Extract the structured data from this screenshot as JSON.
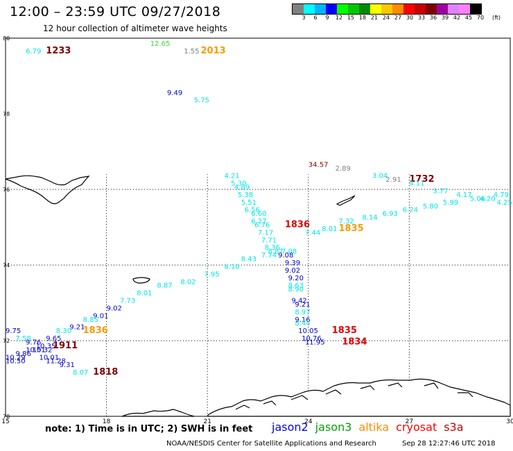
{
  "header": {
    "title": "12:00 – 23:59 UTC 09/27/2018",
    "subtitle": "12 hour collection of altimeter wave heights"
  },
  "colorbar": {
    "unit": "(ft)",
    "colors": [
      "#808080",
      "#00ffff",
      "#00b4ff",
      "#0000ff",
      "#00ff00",
      "#00c800",
      "#008c00",
      "#ffff00",
      "#ffc800",
      "#ff8c00",
      "#ff0000",
      "#c80000",
      "#7f0000",
      "#a000a0",
      "#e080ff",
      "#ff80ff",
      "#000000"
    ],
    "ticks": [
      "3",
      "6",
      "9",
      "12",
      "15",
      "18",
      "21",
      "24",
      "27",
      "30",
      "33",
      "36",
      "39",
      "42",
      "45",
      "70"
    ]
  },
  "footer": {
    "note": "note:  1) Time is in UTC;  2) SWH is in feet",
    "legend": [
      {
        "name": "jason2",
        "color": "#0000ff"
      },
      {
        "name": "jason3",
        "color": "#00a000"
      },
      {
        "name": "altika",
        "color": "#ff8c00"
      },
      {
        "name": "cryosat",
        "color": "#ff0000"
      },
      {
        "name": "s3a",
        "color": "#c80000"
      }
    ],
    "credit_left": "NOAA/NESDIS Center for Satellite Applications and Research",
    "credit_right": "Sep 28 12:27:46 UTC 2018"
  },
  "chart_data": {
    "type": "scatter",
    "title": "12:00 – 23:59 UTC 09/27/2018",
    "subtitle": "12 hour collection of altimeter wave heights",
    "xlim": [
      15,
      30
    ],
    "ylim": [
      70,
      80
    ],
    "x_ticks": [
      "15",
      "18",
      "21",
      "24",
      "27",
      "30"
    ],
    "y_ticks": [
      "70",
      "72",
      "74",
      "76",
      "78",
      "80"
    ],
    "color_scale": {
      "gray": "#808080",
      "cyan": "#00e5e5",
      "blue": "#0000cc",
      "green": "#33dd33",
      "orange": "#ff9900",
      "maroon": "#7f0000",
      "red": "#e00000"
    },
    "observations": [
      {
        "lon": 15.6,
        "lat": 79.6,
        "v": "6.79",
        "c": "cyan"
      },
      {
        "lon": 16.2,
        "lat": 79.6,
        "v": "1233",
        "c": "maroon",
        "time": true
      },
      {
        "lon": 19.3,
        "lat": 79.8,
        "v": "12.65",
        "c": "green"
      },
      {
        "lon": 20.3,
        "lat": 79.6,
        "v": "1.55",
        "c": "gray"
      },
      {
        "lon": 20.8,
        "lat": 79.6,
        "v": "2013",
        "c": "orange",
        "time": true
      },
      {
        "lon": 19.8,
        "lat": 78.5,
        "v": "9.49",
        "c": "blue"
      },
      {
        "lon": 20.6,
        "lat": 78.3,
        "v": "5.75",
        "c": "cyan"
      },
      {
        "lon": 24.0,
        "lat": 76.6,
        "v": "34.57",
        "c": "maroon"
      },
      {
        "lon": 24.8,
        "lat": 76.5,
        "v": "2.89",
        "c": "gray"
      },
      {
        "lon": 25.9,
        "lat": 76.3,
        "v": "3.04",
        "c": "cyan"
      },
      {
        "lon": 26.3,
        "lat": 76.2,
        "v": "2.91",
        "c": "gray"
      },
      {
        "lon": 27.0,
        "lat": 76.2,
        "v": "1732",
        "c": "maroon",
        "time": true
      },
      {
        "lon": 27.0,
        "lat": 76.1,
        "v": "4.11",
        "c": "cyan"
      },
      {
        "lon": 27.7,
        "lat": 75.9,
        "v": "3.77",
        "c": "cyan"
      },
      {
        "lon": 28.4,
        "lat": 75.8,
        "v": "4.17",
        "c": "cyan"
      },
      {
        "lon": 28.8,
        "lat": 75.7,
        "v": "5.06",
        "c": "cyan"
      },
      {
        "lon": 29.1,
        "lat": 75.7,
        "v": "4.20",
        "c": "cyan"
      },
      {
        "lon": 29.5,
        "lat": 75.8,
        "v": "4.79",
        "c": "cyan"
      },
      {
        "lon": 29.6,
        "lat": 75.6,
        "v": "4.25",
        "c": "cyan"
      },
      {
        "lon": 28.0,
        "lat": 75.6,
        "v": "5.99",
        "c": "cyan"
      },
      {
        "lon": 27.4,
        "lat": 75.5,
        "v": "5.80",
        "c": "cyan"
      },
      {
        "lon": 26.8,
        "lat": 75.4,
        "v": "6.24",
        "c": "cyan"
      },
      {
        "lon": 26.2,
        "lat": 75.3,
        "v": "6.93",
        "c": "cyan"
      },
      {
        "lon": 25.6,
        "lat": 75.2,
        "v": "8.14",
        "c": "cyan"
      },
      {
        "lon": 24.9,
        "lat": 75.1,
        "v": "7.32",
        "c": "cyan"
      },
      {
        "lon": 24.9,
        "lat": 74.9,
        "v": "1835",
        "c": "orange",
        "time": true
      },
      {
        "lon": 24.4,
        "lat": 74.9,
        "v": "8.01",
        "c": "cyan"
      },
      {
        "lon": 23.9,
        "lat": 74.8,
        "v": "7.44",
        "c": "cyan"
      },
      {
        "lon": 21.5,
        "lat": 76.3,
        "v": "4.21",
        "c": "cyan"
      },
      {
        "lon": 21.7,
        "lat": 76.1,
        "v": "5.30",
        "c": "cyan"
      },
      {
        "lon": 21.8,
        "lat": 76.0,
        "v": "4.89",
        "c": "cyan"
      },
      {
        "lon": 21.9,
        "lat": 75.8,
        "v": "5.38",
        "c": "cyan"
      },
      {
        "lon": 22.0,
        "lat": 75.6,
        "v": "5.51",
        "c": "cyan"
      },
      {
        "lon": 22.1,
        "lat": 75.4,
        "v": "6.56",
        "c": "cyan"
      },
      {
        "lon": 22.3,
        "lat": 75.3,
        "v": "6.60",
        "c": "cyan"
      },
      {
        "lon": 22.3,
        "lat": 75.1,
        "v": "6.27",
        "c": "cyan"
      },
      {
        "lon": 22.4,
        "lat": 75.0,
        "v": "6.76",
        "c": "cyan"
      },
      {
        "lon": 23.3,
        "lat": 75.0,
        "v": "1836",
        "c": "red",
        "time": true
      },
      {
        "lon": 22.5,
        "lat": 74.8,
        "v": "7.17",
        "c": "cyan"
      },
      {
        "lon": 22.6,
        "lat": 74.6,
        "v": "7.71",
        "c": "cyan"
      },
      {
        "lon": 22.7,
        "lat": 74.4,
        "v": "8.36",
        "c": "cyan"
      },
      {
        "lon": 22.8,
        "lat": 74.3,
        "v": "8.87",
        "c": "cyan"
      },
      {
        "lon": 23.2,
        "lat": 74.3,
        "v": "7.08",
        "c": "cyan"
      },
      {
        "lon": 22.6,
        "lat": 74.2,
        "v": "7.74",
        "c": "cyan"
      },
      {
        "lon": 23.1,
        "lat": 74.2,
        "v": "9.08",
        "c": "blue"
      },
      {
        "lon": 22.0,
        "lat": 74.1,
        "v": "8.43",
        "c": "cyan"
      },
      {
        "lon": 23.3,
        "lat": 74.0,
        "v": "9.39",
        "c": "blue"
      },
      {
        "lon": 21.5,
        "lat": 73.9,
        "v": "8.10",
        "c": "cyan"
      },
      {
        "lon": 23.3,
        "lat": 73.8,
        "v": "9.02",
        "c": "blue"
      },
      {
        "lon": 20.9,
        "lat": 73.7,
        "v": "7.95",
        "c": "cyan"
      },
      {
        "lon": 23.4,
        "lat": 73.6,
        "v": "9.20",
        "c": "blue"
      },
      {
        "lon": 20.2,
        "lat": 73.5,
        "v": "8.02",
        "c": "cyan"
      },
      {
        "lon": 23.4,
        "lat": 73.4,
        "v": "8.63",
        "c": "cyan"
      },
      {
        "lon": 19.5,
        "lat": 73.4,
        "v": "8.87",
        "c": "cyan"
      },
      {
        "lon": 23.4,
        "lat": 73.3,
        "v": "8.90",
        "c": "cyan"
      },
      {
        "lon": 18.9,
        "lat": 73.2,
        "v": "8.01",
        "c": "cyan"
      },
      {
        "lon": 23.5,
        "lat": 73.0,
        "v": "9.42",
        "c": "blue"
      },
      {
        "lon": 18.4,
        "lat": 73.0,
        "v": "7.73",
        "c": "cyan"
      },
      {
        "lon": 23.6,
        "lat": 72.9,
        "v": "9.21",
        "c": "blue"
      },
      {
        "lon": 18.0,
        "lat": 72.8,
        "v": "9.02",
        "c": "blue"
      },
      {
        "lon": 23.6,
        "lat": 72.7,
        "v": "8.97",
        "c": "cyan"
      },
      {
        "lon": 17.6,
        "lat": 72.6,
        "v": "9.01",
        "c": "blue"
      },
      {
        "lon": 23.6,
        "lat": 72.5,
        "v": "9.16",
        "c": "blue"
      },
      {
        "lon": 17.3,
        "lat": 72.5,
        "v": "8.85",
        "c": "cyan"
      },
      {
        "lon": 23.6,
        "lat": 72.4,
        "v": "8.44",
        "c": "cyan"
      },
      {
        "lon": 16.9,
        "lat": 72.3,
        "v": "9.21",
        "c": "blue"
      },
      {
        "lon": 16.5,
        "lat": 72.2,
        "v": "8.30",
        "c": "cyan"
      },
      {
        "lon": 17.3,
        "lat": 72.2,
        "v": "1836",
        "c": "orange",
        "time": true
      },
      {
        "lon": 23.7,
        "lat": 72.2,
        "v": "10.05",
        "c": "blue"
      },
      {
        "lon": 24.7,
        "lat": 72.2,
        "v": "1835",
        "c": "red",
        "time": true
      },
      {
        "lon": 23.8,
        "lat": 72.0,
        "v": "10.76",
        "c": "blue"
      },
      {
        "lon": 23.9,
        "lat": 71.9,
        "v": "11.95",
        "c": "blue"
      },
      {
        "lon": 25.0,
        "lat": 71.9,
        "v": "1834",
        "c": "red",
        "time": true
      },
      {
        "lon": 15.0,
        "lat": 72.2,
        "v": "9.75",
        "c": "blue"
      },
      {
        "lon": 15.3,
        "lat": 72.0,
        "v": "7.58",
        "c": "cyan"
      },
      {
        "lon": 15.6,
        "lat": 71.9,
        "v": "9.76",
        "c": "blue"
      },
      {
        "lon": 16.2,
        "lat": 72.0,
        "v": "9.65",
        "c": "blue"
      },
      {
        "lon": 15.9,
        "lat": 71.8,
        "v": "10.35",
        "c": "blue"
      },
      {
        "lon": 16.4,
        "lat": 71.8,
        "v": "1911",
        "c": "maroon",
        "time": true
      },
      {
        "lon": 15.8,
        "lat": 71.7,
        "v": "10.32",
        "c": "blue"
      },
      {
        "lon": 15.6,
        "lat": 71.7,
        "v": "10.51",
        "c": "blue"
      },
      {
        "lon": 15.3,
        "lat": 71.6,
        "v": "9.86",
        "c": "blue"
      },
      {
        "lon": 15.0,
        "lat": 71.5,
        "v": "10.29",
        "c": "blue"
      },
      {
        "lon": 16.0,
        "lat": 71.5,
        "v": "10.01",
        "c": "blue"
      },
      {
        "lon": 15.0,
        "lat": 71.4,
        "v": "10.50",
        "c": "blue"
      },
      {
        "lon": 16.2,
        "lat": 71.4,
        "v": "11.28",
        "c": "blue"
      },
      {
        "lon": 16.6,
        "lat": 71.3,
        "v": "9.31",
        "c": "blue"
      },
      {
        "lon": 17.0,
        "lat": 71.1,
        "v": "8.07",
        "c": "cyan"
      },
      {
        "lon": 17.6,
        "lat": 71.1,
        "v": "1818",
        "c": "maroon",
        "time": true
      }
    ]
  }
}
